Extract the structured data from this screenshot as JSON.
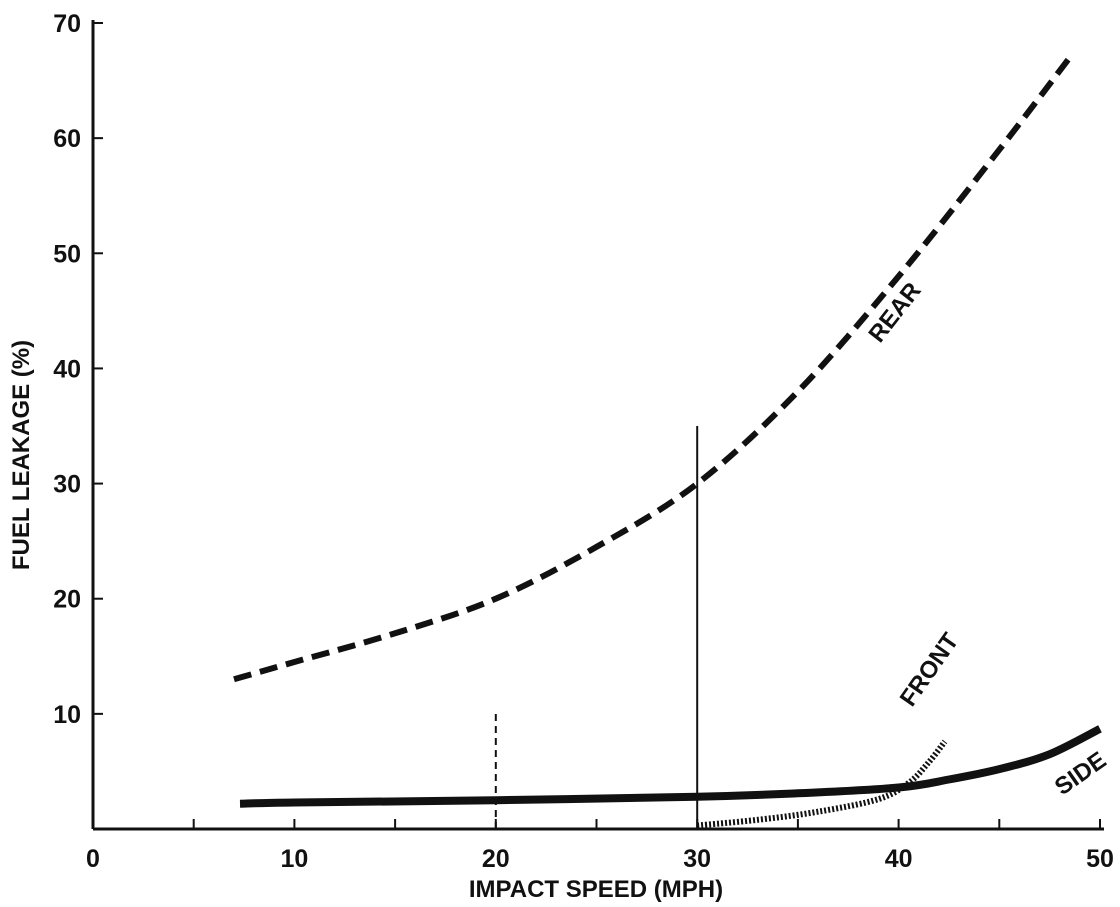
{
  "chart_data": {
    "type": "line",
    "title": "",
    "xlabel": "IMPACT SPEED (MPH)",
    "ylabel": "FUEL LEAKAGE (%)",
    "xlim": [
      0,
      50
    ],
    "ylim": [
      0,
      70
    ],
    "x_ticks": [
      0,
      10,
      20,
      30,
      40,
      50
    ],
    "x_minor_ticks": [
      5,
      15,
      25,
      35,
      45
    ],
    "y_ticks": [
      10,
      20,
      30,
      40,
      50,
      60,
      70
    ],
    "grid": false,
    "legend": "none",
    "series": [
      {
        "name": "REAR",
        "style": "dashed",
        "color": "#111111",
        "x": [
          7,
          10,
          15,
          20,
          25,
          30,
          35,
          40,
          45,
          48.5
        ],
        "y": [
          13,
          14.5,
          17,
          20,
          24.5,
          30,
          38,
          48,
          59,
          67
        ]
      },
      {
        "name": "SIDE",
        "style": "solid",
        "color": "#111111",
        "x": [
          7.3,
          10,
          20,
          30,
          35,
          40,
          42.5,
          45,
          47.5,
          50
        ],
        "y": [
          2.2,
          2.3,
          2.5,
          2.8,
          3.1,
          3.6,
          4.3,
          5.2,
          6.5,
          8.7
        ]
      },
      {
        "name": "FRONT",
        "style": "dotted",
        "color": "#111111",
        "x": [
          30,
          33,
          36,
          39,
          40.5,
          41.5,
          42.3
        ],
        "y": [
          0.3,
          0.8,
          1.5,
          2.6,
          4,
          5.8,
          7.6
        ]
      }
    ],
    "reference_lines": [
      {
        "x": 20,
        "y_from": 0,
        "y_to": 10,
        "style": "dashed"
      },
      {
        "x": 30,
        "y_from": 0,
        "y_to": 35,
        "style": "solid"
      }
    ]
  }
}
